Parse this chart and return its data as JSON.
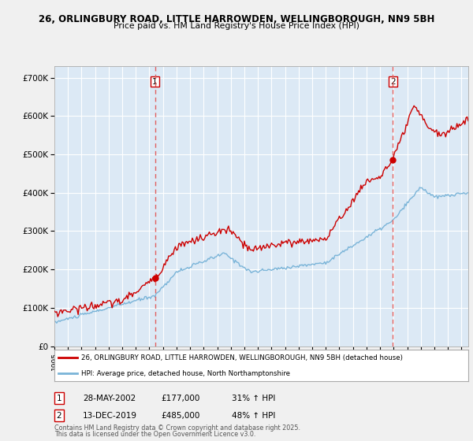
{
  "title_line1": "26, ORLINGBURY ROAD, LITTLE HARROWDEN, WELLINGBOROUGH, NN9 5BH",
  "title_line2": "Price paid vs. HM Land Registry's House Price Index (HPI)",
  "ylabel_ticks": [
    "£0",
    "£100K",
    "£200K",
    "£300K",
    "£400K",
    "£500K",
    "£600K",
    "£700K"
  ],
  "ytick_values": [
    0,
    100000,
    200000,
    300000,
    400000,
    500000,
    600000,
    700000
  ],
  "ylim": [
    0,
    730000
  ],
  "xlim_start": 1995.0,
  "xlim_end": 2025.5,
  "plot_bg_color": "#dce9f5",
  "fig_bg_color": "#f0f0f0",
  "grid_color": "#ffffff",
  "red_line_color": "#cc0000",
  "blue_line_color": "#7ab4d8",
  "marker_color": "#cc0000",
  "vline_color": "#e06060",
  "annotation_box_color": "#ffffff",
  "annotation_box_edge": "#cc0000",
  "legend_label_red": "26, ORLINGBURY ROAD, LITTLE HARROWDEN, WELLINGBOROUGH, NN9 5BH (detached house)",
  "legend_label_blue": "HPI: Average price, detached house, North Northamptonshire",
  "sale1_date": 2002.41,
  "sale1_price": 177000,
  "sale2_date": 2019.95,
  "sale2_price": 485000,
  "footer_line1": "Contains HM Land Registry data © Crown copyright and database right 2025.",
  "footer_line2": "This data is licensed under the Open Government Licence v3.0."
}
